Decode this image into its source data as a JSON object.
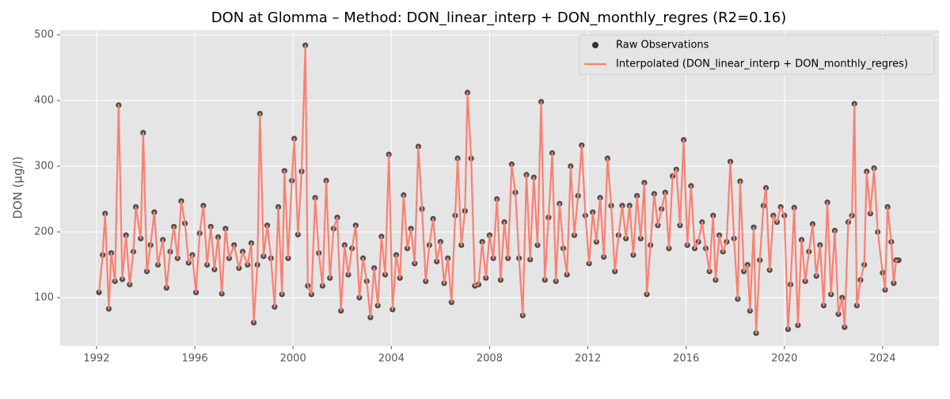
{
  "chart_data": {
    "type": "line",
    "title": "DON at Glomma – Method: DON_linear_interp + DON_monthly_regres (R2=0.16)",
    "ylabel": "DON (µg/l)",
    "x": [
      1992.1,
      1992.25,
      1992.35,
      1992.5,
      1992.6,
      1992.75,
      1992.9,
      1993.05,
      1993.2,
      1993.35,
      1993.5,
      1993.6,
      1993.8,
      1993.9,
      1994.05,
      1994.2,
      1994.35,
      1994.5,
      1994.7,
      1994.85,
      1995.0,
      1995.15,
      1995.3,
      1995.45,
      1995.6,
      1995.75,
      1995.9,
      1996.05,
      1996.2,
      1996.35,
      1996.5,
      1996.65,
      1996.8,
      1996.95,
      1997.1,
      1997.25,
      1997.4,
      1997.6,
      1997.8,
      1997.95,
      1998.15,
      1998.3,
      1998.4,
      1998.55,
      1998.65,
      1998.8,
      1998.95,
      1999.1,
      1999.25,
      1999.4,
      1999.55,
      1999.65,
      1999.8,
      1999.95,
      2000.05,
      2000.2,
      2000.35,
      2000.5,
      2000.6,
      2000.75,
      2000.9,
      2001.05,
      2001.2,
      2001.35,
      2001.5,
      2001.65,
      2001.8,
      2001.95,
      2002.1,
      2002.25,
      2002.4,
      2002.55,
      2002.7,
      2002.85,
      2003.0,
      2003.15,
      2003.3,
      2003.45,
      2003.6,
      2003.75,
      2003.9,
      2004.05,
      2004.2,
      2004.35,
      2004.5,
      2004.65,
      2004.8,
      2004.95,
      2005.1,
      2005.25,
      2005.4,
      2005.55,
      2005.7,
      2005.85,
      2006.0,
      2006.15,
      2006.3,
      2006.45,
      2006.6,
      2006.7,
      2006.85,
      2007.0,
      2007.1,
      2007.25,
      2007.4,
      2007.55,
      2007.7,
      2007.85,
      2008.0,
      2008.15,
      2008.3,
      2008.45,
      2008.6,
      2008.75,
      2008.9,
      2009.05,
      2009.2,
      2009.35,
      2009.5,
      2009.65,
      2009.8,
      2009.95,
      2010.1,
      2010.25,
      2010.4,
      2010.55,
      2010.7,
      2010.85,
      2011.0,
      2011.15,
      2011.3,
      2011.45,
      2011.6,
      2011.75,
      2011.9,
      2012.05,
      2012.2,
      2012.35,
      2012.5,
      2012.65,
      2012.8,
      2012.95,
      2013.1,
      2013.25,
      2013.4,
      2013.55,
      2013.7,
      2013.85,
      2014.0,
      2014.15,
      2014.3,
      2014.4,
      2014.55,
      2014.7,
      2014.85,
      2015.0,
      2015.15,
      2015.3,
      2015.45,
      2015.6,
      2015.75,
      2015.9,
      2016.05,
      2016.2,
      2016.35,
      2016.5,
      2016.65,
      2016.8,
      2016.95,
      2017.1,
      2017.2,
      2017.35,
      2017.5,
      2017.65,
      2017.8,
      2017.95,
      2018.1,
      2018.2,
      2018.35,
      2018.5,
      2018.6,
      2018.75,
      2018.85,
      2019.0,
      2019.15,
      2019.25,
      2019.4,
      2019.55,
      2019.7,
      2019.85,
      2020.0,
      2020.15,
      2020.25,
      2020.4,
      2020.55,
      2020.7,
      2020.85,
      2021.0,
      2021.15,
      2021.3,
      2021.45,
      2021.6,
      2021.75,
      2021.9,
      2022.05,
      2022.2,
      2022.35,
      2022.45,
      2022.6,
      2022.75,
      2022.85,
      2022.95,
      2023.1,
      2023.25,
      2023.35,
      2023.5,
      2023.65,
      2023.8,
      2024.0,
      2024.1,
      2024.2,
      2024.35,
      2024.45,
      2024.55,
      2024.65
    ],
    "series": [
      {
        "name": "Raw Observations",
        "type": "scatter",
        "color": "#333333",
        "values": [
          108,
          165,
          228,
          83,
          168,
          125,
          393,
          128,
          195,
          120,
          170,
          238,
          190,
          351,
          140,
          180,
          230,
          150,
          188,
          115,
          170,
          208,
          160,
          247,
          213,
          153,
          165,
          108,
          198,
          240,
          150,
          208,
          143,
          192,
          106,
          205,
          160,
          180,
          145,
          170,
          150,
          183,
          62,
          150,
          380,
          163,
          210,
          160,
          86,
          238,
          105,
          293,
          160,
          278,
          342,
          196,
          292,
          484,
          118,
          105,
          252,
          168,
          118,
          278,
          130,
          205,
          222,
          80,
          180,
          135,
          175,
          210,
          100,
          160,
          125,
          70,
          145,
          88,
          193,
          135,
          318,
          82,
          165,
          130,
          256,
          175,
          205,
          152,
          330,
          235,
          125,
          180,
          220,
          155,
          185,
          122,
          160,
          93,
          225,
          312,
          180,
          232,
          412,
          312,
          118,
          120,
          185,
          130,
          195,
          160,
          250,
          127,
          215,
          160,
          303,
          260,
          160,
          73,
          287,
          158,
          283,
          180,
          398,
          127,
          222,
          320,
          125,
          243,
          175,
          135,
          300,
          195,
          255,
          332,
          225,
          152,
          230,
          185,
          252,
          162,
          312,
          240,
          140,
          195,
          240,
          190,
          240,
          165,
          255,
          190,
          275,
          105,
          180,
          258,
          210,
          235,
          260,
          175,
          285,
          295,
          210,
          340,
          180,
          270,
          175,
          185,
          215,
          175,
          140,
          225,
          127,
          195,
          170,
          185,
          307,
          190,
          98,
          277,
          140,
          150,
          80,
          207,
          46,
          157,
          240,
          267,
          142,
          225,
          215,
          238,
          225,
          52,
          120,
          237,
          58,
          188,
          125,
          170,
          212,
          133,
          180,
          88,
          245,
          105,
          202,
          75,
          100,
          55,
          215,
          225,
          395,
          88,
          127,
          150,
          292,
          228,
          297,
          200,
          138,
          112,
          238,
          185,
          122,
          157,
          157
        ]
      },
      {
        "name": "Interpolated (DON_linear_interp + DON_monthly_regres)",
        "type": "line",
        "color": "#fa8072",
        "values": [
          108,
          165,
          228,
          83,
          168,
          125,
          393,
          128,
          195,
          120,
          170,
          238,
          190,
          351,
          140,
          180,
          230,
          150,
          188,
          115,
          170,
          208,
          160,
          247,
          213,
          153,
          165,
          108,
          198,
          240,
          150,
          208,
          143,
          192,
          106,
          205,
          160,
          180,
          145,
          170,
          150,
          183,
          62,
          150,
          380,
          163,
          210,
          160,
          86,
          238,
          105,
          293,
          160,
          278,
          342,
          196,
          292,
          484,
          118,
          105,
          252,
          168,
          118,
          278,
          130,
          205,
          222,
          80,
          180,
          135,
          175,
          210,
          100,
          160,
          125,
          70,
          145,
          88,
          193,
          135,
          318,
          82,
          165,
          130,
          256,
          175,
          205,
          152,
          330,
          235,
          125,
          180,
          220,
          155,
          185,
          122,
          160,
          93,
          225,
          312,
          180,
          232,
          412,
          312,
          118,
          120,
          185,
          130,
          195,
          160,
          250,
          127,
          215,
          160,
          303,
          260,
          160,
          73,
          287,
          158,
          283,
          180,
          398,
          127,
          222,
          320,
          125,
          243,
          175,
          135,
          300,
          195,
          255,
          332,
          225,
          152,
          230,
          185,
          252,
          162,
          312,
          240,
          140,
          195,
          240,
          190,
          240,
          165,
          255,
          190,
          275,
          105,
          180,
          258,
          210,
          235,
          260,
          175,
          285,
          295,
          210,
          340,
          180,
          270,
          175,
          185,
          215,
          175,
          140,
          225,
          127,
          195,
          170,
          185,
          307,
          190,
          98,
          277,
          140,
          150,
          80,
          207,
          46,
          157,
          240,
          267,
          142,
          225,
          215,
          238,
          225,
          52,
          120,
          237,
          58,
          188,
          125,
          170,
          212,
          133,
          180,
          88,
          245,
          105,
          202,
          75,
          100,
          55,
          215,
          225,
          395,
          88,
          127,
          150,
          292,
          228,
          297,
          200,
          138,
          112,
          238,
          185,
          122,
          157,
          157
        ]
      }
    ],
    "xlim": [
      1990.52,
      2026.29
    ],
    "xticks": [
      1992,
      1996,
      2000,
      2004,
      2008,
      2012,
      2016,
      2020,
      2024
    ],
    "ylim": [
      26.5,
      507.2
    ],
    "yticks": [
      100,
      200,
      300,
      400,
      500
    ],
    "grid": true,
    "legend": "upper right"
  }
}
